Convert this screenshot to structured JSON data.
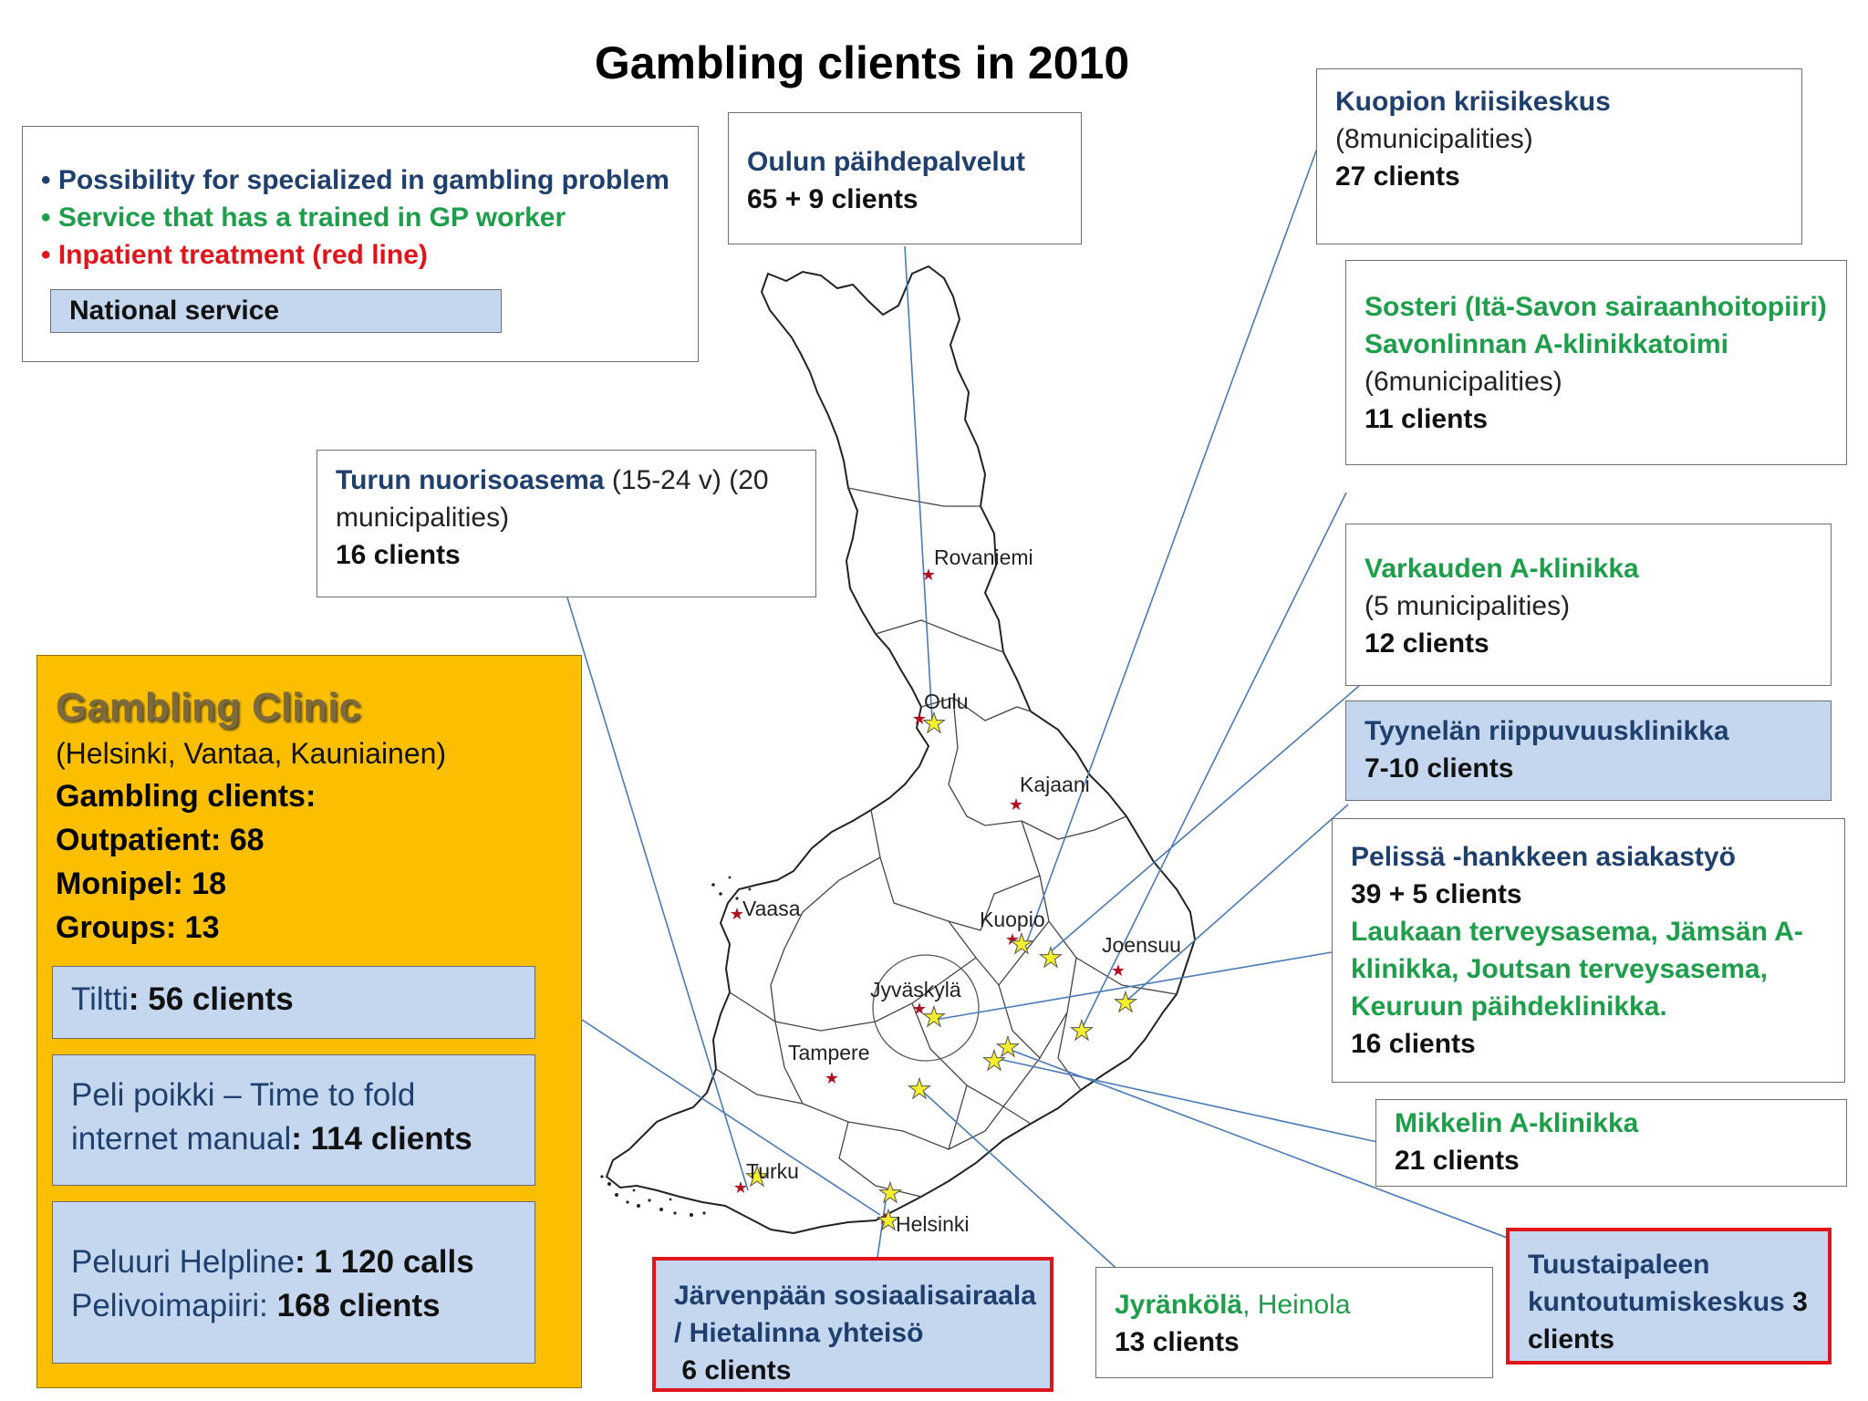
{
  "title": "Gambling clients in 2010",
  "legend": {
    "items": [
      {
        "text": "• Possibility for specialized in gambling problem",
        "color": "#1f3f6e"
      },
      {
        "text": "• Service that has a trained in GP worker",
        "color": "#1e9e4a"
      },
      {
        "text": "• Inpatient treatment (red line)",
        "color": "#e0151b"
      }
    ],
    "national_label": "National service"
  },
  "oulu": {
    "name": "Oulun päihdepalvelut",
    "count": "65 + 9 clients"
  },
  "kuopio_box": {
    "name": "Kuopion kriisikeskus",
    "scope": "(8municipalities)",
    "count": "27 clients"
  },
  "sosteri": {
    "line1": "Sosteri (Itä-Savon sairaanhoitopiiri)",
    "line2": "Savonlinnan A-klinikkatoimi",
    "scope": "(6municipalities)",
    "count": "11 clients"
  },
  "turku_box": {
    "name": "Turun nuorisoasema",
    "age": " (15-24 v) (20",
    "scope2": "municipalities)",
    "count": "16 clients"
  },
  "varkaus": {
    "name": "Varkauden A-klinikka",
    "scope": "(5 municipalities)",
    "count": "12 clients"
  },
  "tyynela": {
    "name": "Tyynelän riippuvuusklinikka",
    "count": "7-10 clients"
  },
  "pelissa": {
    "name": "Pelissä -hankkeen asiakastyö",
    "count1": "39 + 5 clients",
    "green1": "Laukaan terveysasema, Jämsän A-",
    "green2": "klinikka, Joutsan terveysasema,",
    "green3": "Keuruun päihdeklinikka.",
    "count2": "16 clients"
  },
  "mikkeli": {
    "name": "Mikkelin A-klinikka",
    "count": "21 clients"
  },
  "tuusta": {
    "line1": "Tuustaipaleen",
    "line2": "kuntoutumiskeskus",
    "count_inline": " 3",
    "line3": "clients"
  },
  "jyrankola": {
    "name": "Jyränkölä",
    "place": ", Heinola",
    "count": "13 clients"
  },
  "jarvenpaa": {
    "line1": "Järvenpään sosiaalisairaala",
    "line2": "/ Hietalinna yhteisö",
    "count": " 6 clients"
  },
  "clinic": {
    "heading": "Gambling Clinic",
    "cities": "(Helsinki, Vantaa, Kauniainen)",
    "clients_label": "Gambling clients:",
    "outpatient": "Outpatient: 68",
    "monipel": "Monipel: 18",
    "groups": "Groups: 13",
    "tiltti_name": "Tiltti",
    "tiltti_count": ": 56 clients",
    "peli_line1": "Peli poikki – Time to fold",
    "peli_line2_name": "internet manual",
    "peli_line2_count": ": 114 clients",
    "peluuri_name": "Peluuri Helpline",
    "peluuri_count": ": 1 120 calls",
    "pelivoima_name": "Pelivoimapiiri:",
    "pelivoima_count": " 168 clients"
  },
  "cities": [
    "Rovaniemi",
    "Oulu",
    "Kajaani",
    "Vaasa",
    "Kuopio",
    "Joensuu",
    "Jyväskylä",
    "Tampere",
    "Turku",
    "Helsinki"
  ],
  "colors": {
    "clinic_fill": "#fbbf00",
    "service_fill": "#c5d7ee",
    "star": "#f5ee2a",
    "city_star": "#b01020",
    "leader": "#4a7ab5"
  }
}
